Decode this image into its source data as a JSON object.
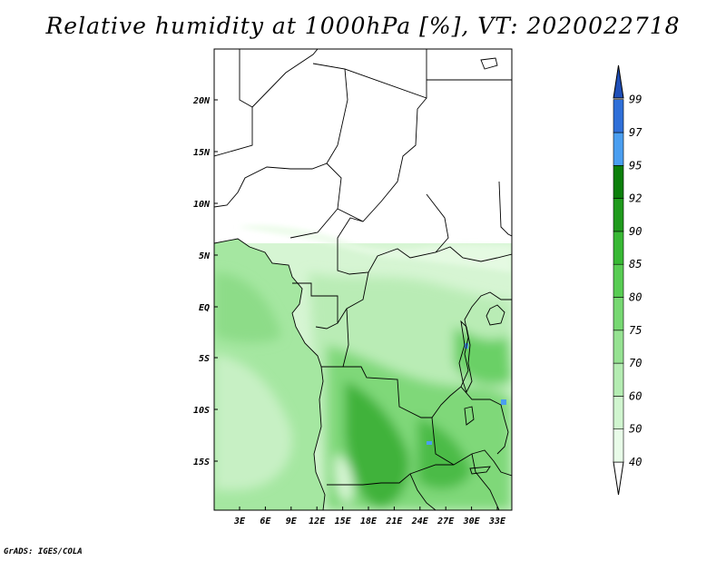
{
  "title": "Relative humidity at 1000hPa [%], VT: 2020022718",
  "credit": "GrADS: IGES/COLA",
  "map": {
    "lat_labels": [
      "20N",
      "15N",
      "10N",
      "5N",
      "EQ",
      "5S",
      "10S",
      "15S"
    ],
    "lon_labels": [
      "3E",
      "6E",
      "9E",
      "12E",
      "15E",
      "18E",
      "21E",
      "24E",
      "27E",
      "30E",
      "33E"
    ]
  },
  "colorbar": {
    "labels": [
      "40",
      "50",
      "60",
      "70",
      "75",
      "80",
      "85",
      "90",
      "92",
      "95",
      "97",
      "99"
    ],
    "colors": [
      "#ffffff",
      "#e8fbe8",
      "#d0f5cf",
      "#b4ecb2",
      "#96e292",
      "#77d872",
      "#58cc53",
      "#38b834",
      "#1f9a1c",
      "#0b7f0a",
      "#4a9ef0",
      "#2f6fd8",
      "#1f4fb8"
    ]
  }
}
